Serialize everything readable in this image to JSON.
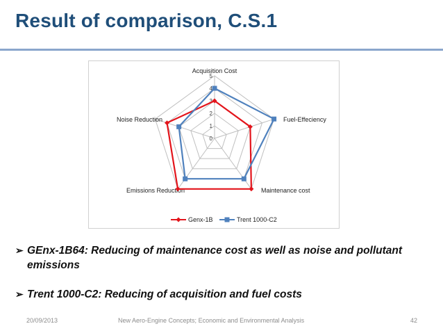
{
  "slide": {
    "title": "Result of comparison, C.S.1",
    "bullets": [
      {
        "arrow": "➢",
        "text": "GEnx-1B64: Reducing of maintenance cost as well as noise and pollutant emissions"
      },
      {
        "arrow": "➢",
        "text": "Trent 1000-C2: Reducing of acquisition and fuel costs"
      }
    ],
    "footer": {
      "date": "20/09/2013",
      "center": "New Aero-Engine Concepts; Economic and Environmental Analysis",
      "page": "42"
    }
  },
  "colors": {
    "title": "#1f4e79",
    "rule": "#8aa6cc",
    "grid": "#bfbfbf",
    "genx": "#e3141b",
    "trent": "#4f81bd"
  },
  "chart_data": {
    "type": "radar",
    "title": "",
    "axes": [
      "Acquisition Cost",
      "Fuel-Effeciency",
      "Maintenance cost",
      "Emissions Reduction",
      "Noise Reduction"
    ],
    "rlim": [
      0,
      5
    ],
    "ticks": [
      "0",
      "1",
      "2",
      "3",
      "4",
      "5"
    ],
    "grid": true,
    "legend_position": "bottom",
    "series": [
      {
        "name": "Genx-1B",
        "values": [
          3,
          3,
          5,
          5,
          4
        ]
      },
      {
        "name": "Trent 1000-C2",
        "values": [
          4,
          5,
          4,
          4,
          3
        ]
      }
    ]
  }
}
